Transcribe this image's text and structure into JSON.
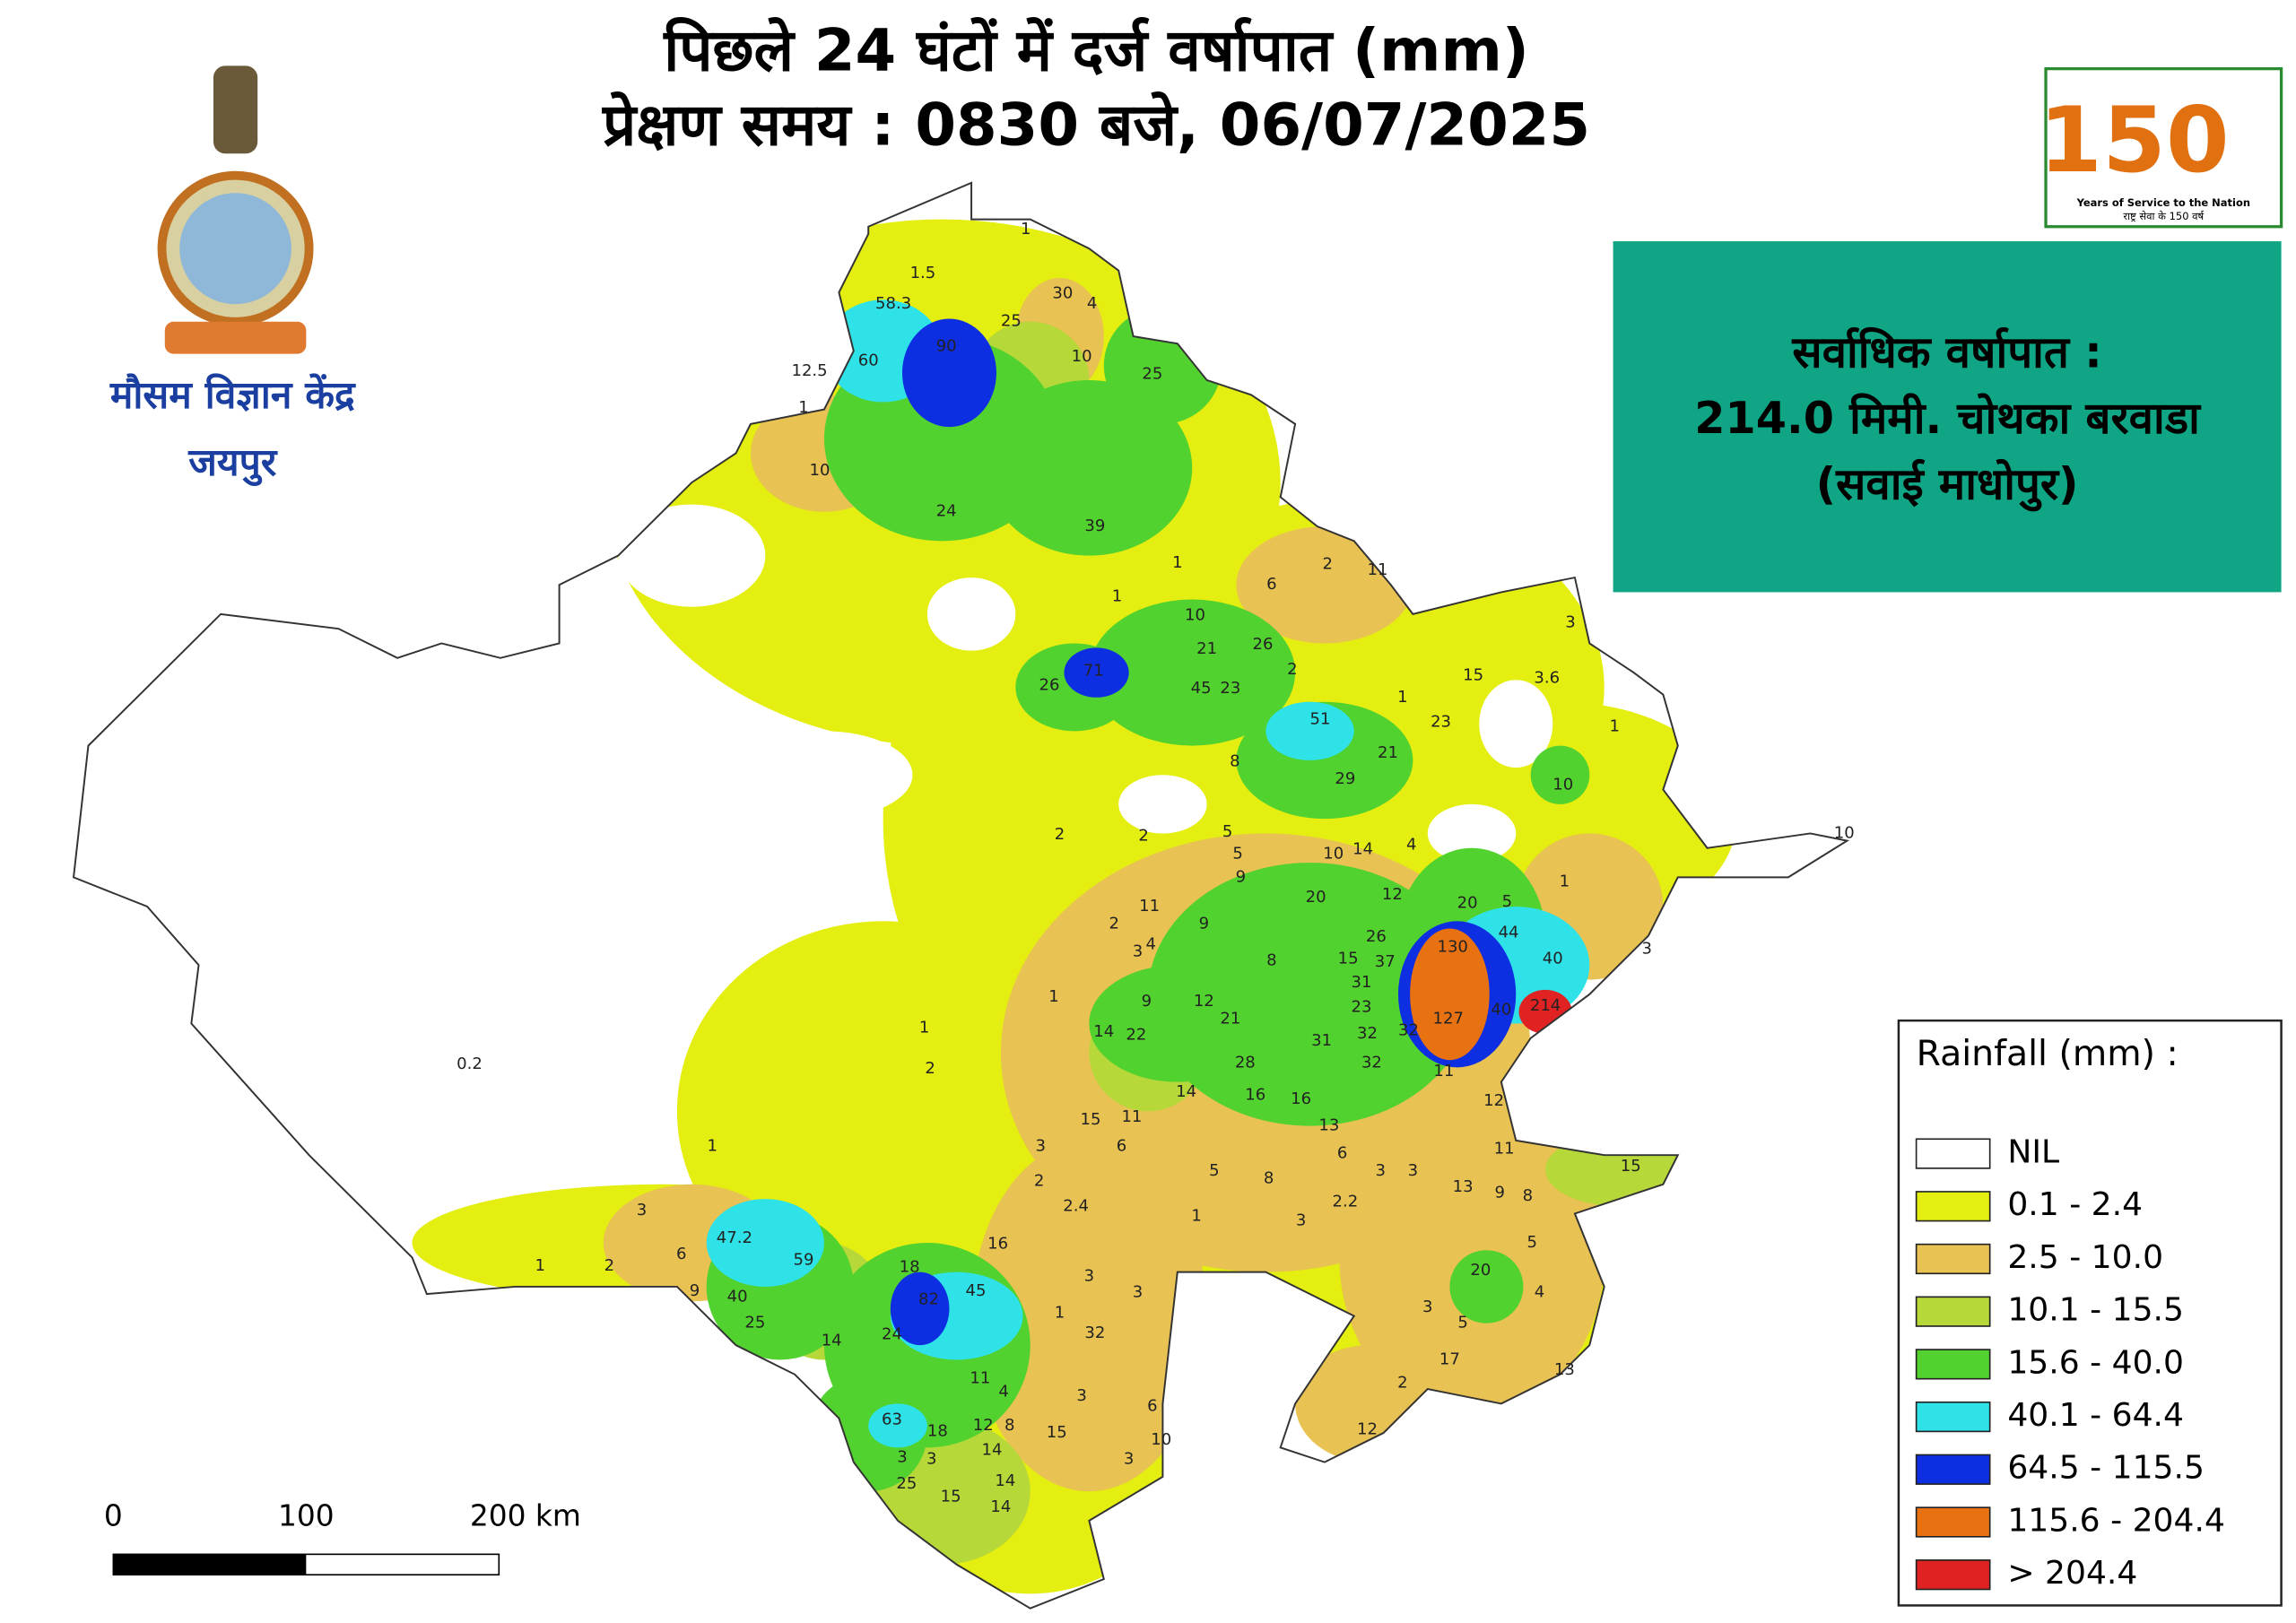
{
  "header": {
    "title_line1": "पिछले 24 घंटों में दर्ज वर्षापात (mm)",
    "title_line2": "प्रेक्षण समय : 0830 बजे, 06/07/2025"
  },
  "logo_left": {
    "name": "मौसम विज्ञान केंद्र",
    "city": "जयपुर"
  },
  "logo_right": {
    "number": "150",
    "caption": "Years of Service to the Nation",
    "caption_hindi": "राष्ट्र सेवा के 150 वर्ष"
  },
  "info_box": {
    "line1": "सर्वाधिक वर्षापात :",
    "line2": "214.0 मिमी. चोथका बरवाडा",
    "line3": "(सवाई माधोपुर)"
  },
  "legend": {
    "title": "Rainfall (mm) :",
    "items": [
      {
        "label": "NIL",
        "color": "#ffffff"
      },
      {
        "label": "0.1 - 2.4",
        "color": "#e4ee10"
      },
      {
        "label": "2.5 - 10.0",
        "color": "#e8c252"
      },
      {
        "label": "10.1 - 15.5",
        "color": "#b6d838"
      },
      {
        "label": "15.6 - 40.0",
        "color": "#52d22e"
      },
      {
        "label": "40.1 - 64.4",
        "color": "#2ee2e8"
      },
      {
        "label": "64.5 - 115.5",
        "color": "#0e2ee2"
      },
      {
        "label": "115.6 - 204.4",
        "color": "#e87212"
      },
      {
        "label": "> 204.4",
        "color": "#e02222"
      }
    ]
  },
  "scale_bar": {
    "labels": [
      "0",
      "100",
      "200 km"
    ]
  },
  "map": {
    "station_labels": [
      "1",
      "1.5",
      "58.3",
      "30",
      "4",
      "25",
      "90",
      "60",
      "10",
      "12.5",
      "1",
      "25",
      "10",
      "24",
      "39",
      "1",
      "2",
      "11",
      "6",
      "1",
      "10",
      "21",
      "26",
      "71",
      "26",
      "45",
      "23",
      "2",
      "15",
      "3.6",
      "3",
      "1",
      "51",
      "23",
      "1",
      "21",
      "8",
      "29",
      "10",
      "2",
      "2",
      "5",
      "5",
      "9",
      "10",
      "14",
      "4",
      "10",
      "20",
      "12",
      "11",
      "9",
      "4",
      "3",
      "2",
      "26",
      "20",
      "5",
      "1",
      "44",
      "130",
      "8",
      "15",
      "37",
      "40",
      "3",
      "31",
      "23",
      "127",
      "40",
      "214",
      "12",
      "9",
      "21",
      "1",
      "1",
      "14",
      "22",
      "31",
      "32",
      "32",
      "32",
      "28",
      "0.2",
      "2",
      "11",
      "14",
      "16",
      "16",
      "12",
      "15",
      "11",
      "6",
      "13",
      "11",
      "1",
      "5",
      "8",
      "6",
      "3",
      "3",
      "3",
      "15",
      "2",
      "2.2",
      "13",
      "9",
      "8",
      "3",
      "2.4",
      "1",
      "3",
      "47.2",
      "16",
      "5",
      "59",
      "6",
      "1",
      "2",
      "18",
      "20",
      "9",
      "40",
      "82",
      "45",
      "3",
      "3",
      "4",
      "25",
      "1",
      "32",
      "14",
      "24",
      "5",
      "3",
      "17",
      "13",
      "11",
      "4",
      "3",
      "2",
      "6",
      "63",
      "18",
      "12",
      "8",
      "15",
      "10",
      "12",
      "3",
      "3",
      "14",
      "3",
      "25",
      "15",
      "14",
      "14"
    ]
  }
}
